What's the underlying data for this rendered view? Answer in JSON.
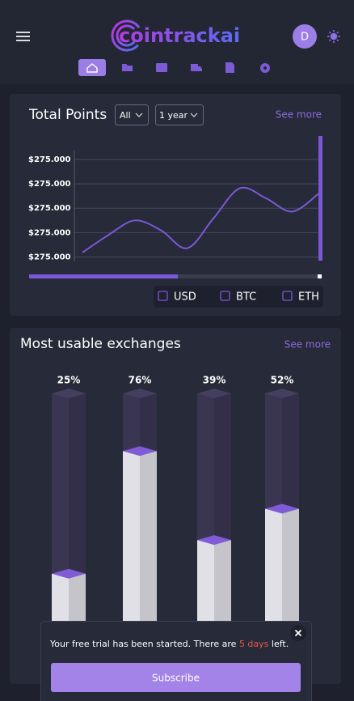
{
  "header": {
    "logo": "cointrackai",
    "avatar": "D"
  },
  "total_points": {
    "filters": [
      "All",
      "1 year"
    ],
    "see_more": "See more"
  },
  "exchanges": {
    "see_more": "See more"
  },
  "chart_data": [
    {
      "type": "line",
      "title": "Total Points",
      "color": "#7b58d8",
      "values": [
        8,
        24,
        37,
        28,
        12,
        39,
        66,
        57,
        45,
        61
      ],
      "ylim": [
        0,
        100
      ],
      "yticks": [
        {
          "value": 4,
          "label": "$275.000"
        },
        {
          "value": 26,
          "label": "$275.000"
        },
        {
          "value": 48,
          "label": "$275.000"
        },
        {
          "value": 70,
          "label": "$275.000"
        },
        {
          "value": 92,
          "label": "$275.000"
        }
      ],
      "grid": true,
      "legend": [
        "USD",
        "BTC",
        "ETH"
      ]
    },
    {
      "type": "bar",
      "title": "Most usable exchanges",
      "values": [
        25,
        76,
        39,
        52
      ],
      "value_labels": [
        "25%",
        "76%",
        "39%",
        "52%"
      ],
      "ylim": [
        0,
        100
      ],
      "color": "#7f5bd6"
    }
  ],
  "popup": {
    "message_start": "Your free trial has been started. There are",
    "highlight": "5 days",
    "message_end": "left.",
    "button": "Subscribe"
  }
}
